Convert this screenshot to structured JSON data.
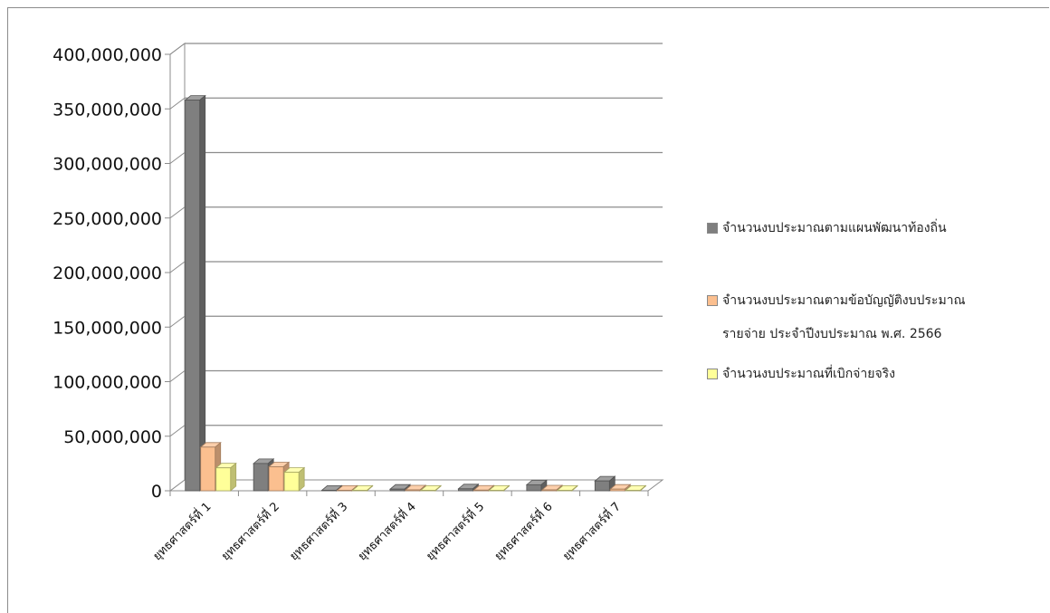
{
  "chart_data": {
    "type": "bar",
    "categories": [
      "ยุทธศาสตร์ที่ 1",
      "ยุทธศาสตร์ที่ 2",
      "ยุทธศาสตร์ที่ 3",
      "ยุทธศาสตร์ที่ 4",
      "ยุทธศาสตร์ที่ 5",
      "ยุทธศาสตร์ที่ 6",
      "ยุทธศาสตร์ที่ 7"
    ],
    "series": [
      {
        "name": "จำนวนงบประมาณตามแผนพัฒนาท้องถิ่น",
        "color": "#7f7f7f",
        "values": [
          358000000,
          25000000,
          400000,
          1500000,
          1800000,
          5500000,
          9000000
        ]
      },
      {
        "name": "จำนวนงบประมาณตามข้อบัญญัติงบประมาณ รายจ่าย ประจำปีงบประมาณ พ.ศ. 2566",
        "name_lines": [
          "จำนวนงบประมาณตามข้อบัญญัติงบประมาณ",
          "รายจ่าย ประจำปีงบประมาณ พ.ศ. 2566"
        ],
        "color": "#fbbf8f",
        "values": [
          40000000,
          22000000,
          300000,
          800000,
          600000,
          800000,
          1500000
        ]
      },
      {
        "name": "จำนวนงบประมาณที่เบิกจ่ายจริง",
        "color": "#ffff99",
        "values": [
          21000000,
          17000000,
          100000,
          300000,
          200000,
          300000,
          400000
        ]
      }
    ],
    "y_ticks": [
      "0",
      "50,000,000",
      "100,000,000",
      "150,000,000",
      "200,000,000",
      "250,000,000",
      "300,000,000",
      "350,000,000",
      "400,000,000"
    ],
    "ylim": [
      0,
      400000000
    ],
    "grid": true,
    "legend_position": "right"
  }
}
